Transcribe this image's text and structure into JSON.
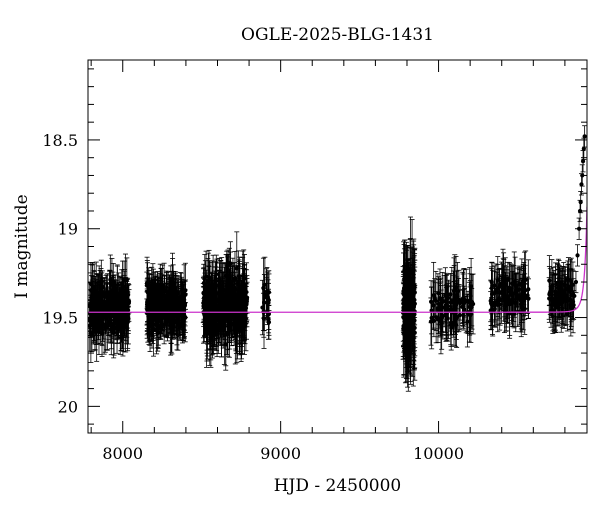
{
  "chart_data": {
    "type": "scatter",
    "title": "OGLE-2025-BLG-1431",
    "xlabel": "HJD - 2450000",
    "ylabel": "I magnitude",
    "xlim": [
      7780,
      10940
    ],
    "ylim": [
      20.15,
      18.05
    ],
    "y_inverted": true,
    "xticks": [
      8000,
      9000,
      10000
    ],
    "yticks": [
      18.5,
      19,
      19.5,
      20
    ],
    "ytick_labels": [
      "18.5",
      "19",
      "19.5",
      "20"
    ],
    "xminor_step": 200,
    "yminor_step": 0.1,
    "grid": false,
    "series": [
      {
        "kind": "points-with-errorbars",
        "color": "#000000",
        "seasons": [
          {
            "x_range": [
              7790,
              8040
            ],
            "mag_center": 19.45,
            "mag_spread": 0.1,
            "errbar": 0.12,
            "n": 260
          },
          {
            "x_range": [
              8150,
              8400
            ],
            "mag_center": 19.44,
            "mag_spread": 0.09,
            "errbar": 0.12,
            "n": 280
          },
          {
            "x_range": [
              8510,
              8790
            ],
            "mag_center": 19.44,
            "mag_spread": 0.12,
            "errbar": 0.15,
            "n": 320
          },
          {
            "x_range": [
              8880,
              8930
            ],
            "mag_center": 19.42,
            "mag_spread": 0.08,
            "errbar": 0.14,
            "n": 20
          },
          {
            "x_range": [
              9775,
              9850
            ],
            "mag_center": 19.47,
            "mag_spread": 0.15,
            "errbar": 0.22,
            "n": 150
          },
          {
            "x_range": [
              9950,
              10220
            ],
            "mag_center": 19.44,
            "mag_spread": 0.08,
            "errbar": 0.14,
            "n": 100
          },
          {
            "x_range": [
              10330,
              10570
            ],
            "mag_center": 19.38,
            "mag_spread": 0.07,
            "errbar": 0.13,
            "n": 110
          },
          {
            "x_range": [
              10700,
              10860
            ],
            "mag_center": 19.38,
            "mag_spread": 0.07,
            "errbar": 0.13,
            "n": 90
          }
        ],
        "rise_points": [
          {
            "x": 10870,
            "y": 19.3
          },
          {
            "x": 10880,
            "y": 19.15
          },
          {
            "x": 10890,
            "y": 19.0
          },
          {
            "x": 10896,
            "y": 18.9
          },
          {
            "x": 10900,
            "y": 18.85
          },
          {
            "x": 10905,
            "y": 18.75
          },
          {
            "x": 10910,
            "y": 18.7
          },
          {
            "x": 10915,
            "y": 18.62
          },
          {
            "x": 10920,
            "y": 18.55
          },
          {
            "x": 10925,
            "y": 18.48
          }
        ]
      },
      {
        "kind": "model-curve",
        "color": "#cc33cc",
        "baseline": 19.47,
        "t0": 10960,
        "tE": 30,
        "u0": 0.09
      }
    ]
  }
}
